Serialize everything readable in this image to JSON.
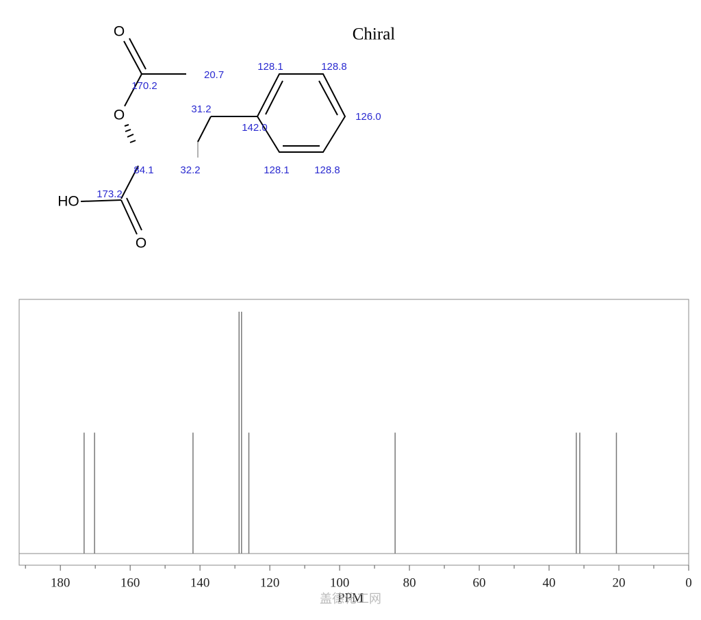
{
  "structure": {
    "chiral_label": "Chiral",
    "atoms": [
      "O",
      "O",
      "HO",
      "O"
    ],
    "shift_labels": [
      "20.7",
      "170.2",
      "31.2",
      "142.0",
      "128.1",
      "128.8",
      "126.0",
      "128.1",
      "128.8",
      "32.2",
      "84.1",
      "173.2"
    ]
  },
  "watermark": "盖德化工网",
  "chart_data": {
    "type": "spectrum",
    "x_label": "PPM",
    "x": [
      173.2,
      170.2,
      142.0,
      128.8,
      128.1,
      126.0,
      84.1,
      32.2,
      31.2,
      20.7
    ],
    "values": [
      0.5,
      0.5,
      0.5,
      1,
      1,
      0.5,
      0.5,
      0.5,
      0.5,
      0.5
    ],
    "color": "#777777",
    "xlim": [
      191.8,
      0
    ],
    "ylim": [
      -0.048,
      1.051
    ],
    "xticks": [
      180,
      160,
      140,
      120,
      100,
      80,
      60,
      40,
      20,
      0
    ],
    "xminor_ticks": [
      190,
      170,
      150,
      130,
      110,
      90,
      70,
      50,
      30,
      10
    ]
  }
}
